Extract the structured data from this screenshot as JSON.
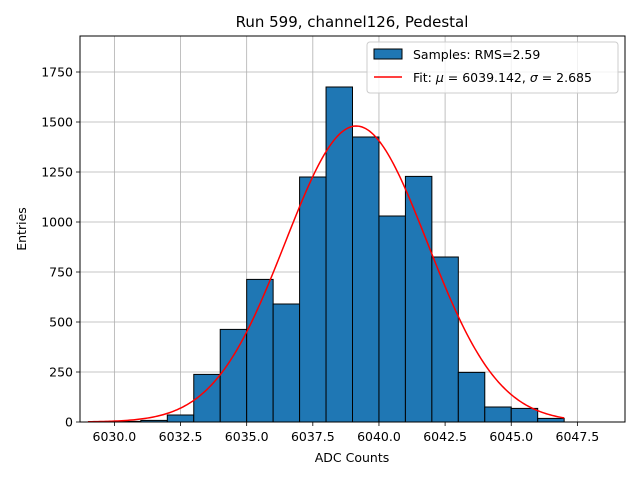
{
  "chart_data": {
    "type": "bar",
    "title": "Run 599, channel126, Pedestal",
    "xlabel": "ADC Counts",
    "ylabel": "Entries",
    "xlim": [
      6028.7,
      6049.3
    ],
    "ylim": [
      0,
      1930
    ],
    "xticks": [
      6030.0,
      6032.5,
      6035.0,
      6037.5,
      6040.0,
      6042.5,
      6045.0,
      6047.5
    ],
    "yticks": [
      0,
      250,
      500,
      750,
      1000,
      1250,
      1500,
      1750
    ],
    "grid": true,
    "legend_position": "top-right",
    "bin_edges": [
      6029,
      6030,
      6031,
      6032,
      6033,
      6034,
      6035,
      6036,
      6037,
      6038,
      6039,
      6040,
      6041,
      6042,
      6043,
      6044,
      6045,
      6046,
      6047
    ],
    "series": [
      {
        "name": "Samples: RMS=2.59",
        "kind": "histogram",
        "color": "#1f77b4",
        "edge_color": "#000000",
        "values": [
          0,
          3,
          8,
          35,
          238,
          463,
          713,
          590,
          1225,
          1675,
          1425,
          1030,
          1228,
          825,
          248,
          75,
          68,
          18
        ]
      },
      {
        "name": "Fit: μ = 6039.142, σ = 2.685",
        "kind": "gaussian-fit",
        "color": "#ff0000",
        "mu": 6039.142,
        "sigma": 2.685,
        "amplitude": 1480,
        "x_range": [
          6029,
          6047
        ]
      }
    ],
    "tick_labels": {
      "x": [
        "6030.0",
        "6032.5",
        "6035.0",
        "6037.5",
        "6040.0",
        "6042.5",
        "6045.0",
        "6047.5"
      ],
      "y": [
        "0",
        "250",
        "500",
        "750",
        "1000",
        "1250",
        "1500",
        "1750"
      ]
    },
    "legend": {
      "samples_label": "Samples: RMS=2.59",
      "fit_prefix": "Fit: ",
      "fit_mu_symbol": "μ",
      "fit_mu_value": " = 6039.142, ",
      "fit_sigma_symbol": "σ",
      "fit_sigma_value": " = 2.685"
    }
  }
}
